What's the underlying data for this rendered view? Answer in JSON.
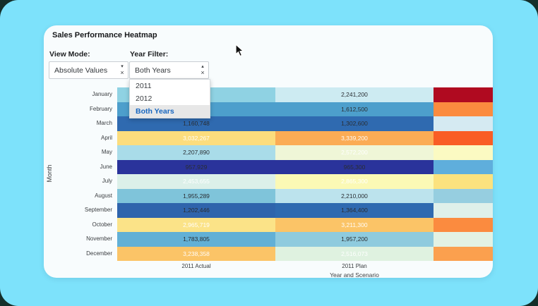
{
  "frame": {
    "bg": "#7DE2FB",
    "outer": "#142f2a"
  },
  "card": {
    "title": "Sales Performance Heatmap",
    "bg": "#F8FCFD"
  },
  "controls": {
    "view_mode": {
      "label": "View Mode:",
      "value": "Absolute Values",
      "caret": "▾",
      "clear": "×"
    },
    "year_filter": {
      "label": "Year Filter:",
      "value": "Both Years",
      "caret": "▴",
      "clear": "×",
      "options": [
        {
          "label": "2011",
          "selected": false
        },
        {
          "label": "2012",
          "selected": false
        },
        {
          "label": "Both Years",
          "selected": true
        }
      ],
      "selected_text_color": "#1867C0"
    }
  },
  "chart_data": {
    "type": "heatmap",
    "title": "Sales Performance Heatmap",
    "ylabel": "Month",
    "xlabel": "Year and Scenario",
    "columns": [
      "2011 Actual",
      "2011 Plan",
      ""
    ],
    "rows": [
      "January",
      "February",
      "March",
      "April",
      "May",
      "June",
      "July",
      "August",
      "September",
      "October",
      "November",
      "December"
    ],
    "cells": [
      [
        {
          "v": "",
          "bg": "#8FD2E3",
          "tc": "dark"
        },
        {
          "v": "2,241,200",
          "bg": "#CDEBF2",
          "tc": "dark"
        },
        {
          "v": "",
          "bg": "#B00A20",
          "tc": "white"
        }
      ],
      [
        {
          "v": "",
          "bg": "#4D9FCC",
          "tc": "dark"
        },
        {
          "v": "1,612,500",
          "bg": "#4D9FCC",
          "tc": "dark"
        },
        {
          "v": "",
          "bg": "#FB8B3F",
          "tc": "white"
        }
      ],
      [
        {
          "v": "1,160,748",
          "bg": "#2F6AB0",
          "tc": "dark"
        },
        {
          "v": "1,302,600",
          "bg": "#2F6AB0",
          "tc": "dark"
        },
        {
          "v": "",
          "bg": "#D5EAF2",
          "tc": "dark"
        }
      ],
      [
        {
          "v": "3,032,267",
          "bg": "#FCDD7D",
          "tc": "white"
        },
        {
          "v": "3,339,200",
          "bg": "#FBAC55",
          "tc": "white"
        },
        {
          "v": "",
          "bg": "#F95D25",
          "tc": "white"
        }
      ],
      [
        {
          "v": "2,207,890",
          "bg": "#A9DCE9",
          "tc": "dark"
        },
        {
          "v": "2,572,200",
          "bg": "#EFF6D7",
          "tc": "white"
        },
        {
          "v": "",
          "bg": "#FBFAC2",
          "tc": "dark"
        }
      ],
      [
        {
          "v": "957,929",
          "bg": "#2A339B",
          "tc": "dark"
        },
        {
          "v": "965,300",
          "bg": "#2A339B",
          "tc": "dark"
        },
        {
          "v": "",
          "bg": "#5FAEDC",
          "tc": "dark"
        }
      ],
      [
        {
          "v": "2,453,655",
          "bg": "#DCF0E9",
          "tc": "white"
        },
        {
          "v": "2,865,300",
          "bg": "#FBF9B5",
          "tc": "white"
        },
        {
          "v": "",
          "bg": "#FBE27E",
          "tc": "dark"
        }
      ],
      [
        {
          "v": "1,955,289",
          "bg": "#7FC4DA",
          "tc": "dark"
        },
        {
          "v": "2,210,000",
          "bg": "#BCE3ED",
          "tc": "dark"
        },
        {
          "v": "",
          "bg": "#96CEE0",
          "tc": "dark"
        }
      ],
      [
        {
          "v": "1,202,446",
          "bg": "#2F64AC",
          "tc": "dark"
        },
        {
          "v": "1,364,400",
          "bg": "#2F6AB0",
          "tc": "dark"
        },
        {
          "v": "",
          "bg": "#DFF0EA",
          "tc": "dark"
        }
      ],
      [
        {
          "v": "2,965,719",
          "bg": "#FBE388",
          "tc": "white"
        },
        {
          "v": "3,211,300",
          "bg": "#FBC467",
          "tc": "white"
        },
        {
          "v": "",
          "bg": "#FB8B3F",
          "tc": "white"
        }
      ],
      [
        {
          "v": "1,783,805",
          "bg": "#62B0D6",
          "tc": "dark"
        },
        {
          "v": "1,957,200",
          "bg": "#8FCBDE",
          "tc": "dark"
        },
        {
          "v": "",
          "bg": "#E3F2E3",
          "tc": "dark"
        }
      ],
      [
        {
          "v": "3,238,358",
          "bg": "#FBC467",
          "tc": "white"
        },
        {
          "v": "2,516,073",
          "bg": "#DFF2E0",
          "tc": "white"
        },
        {
          "v": "",
          "bg": "#FBA04E",
          "tc": "white"
        }
      ]
    ]
  }
}
